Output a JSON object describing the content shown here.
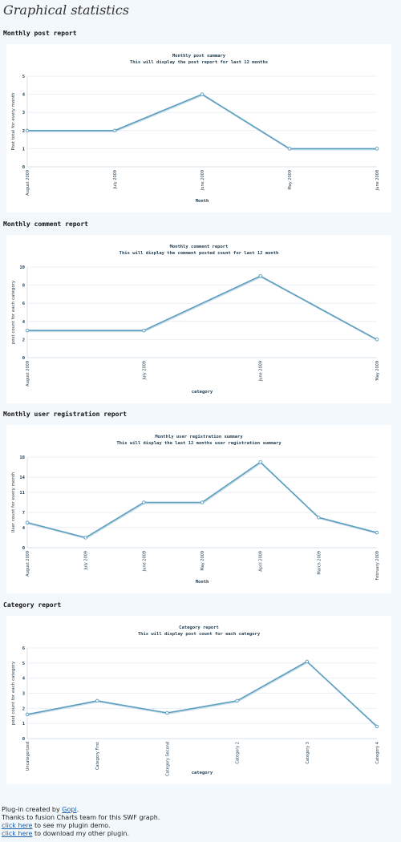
{
  "page": {
    "title": "Graphical statistics"
  },
  "charts": [
    {
      "section_title": "Monthly post report",
      "chart_data": {
        "type": "line",
        "title": "Monthly post summary",
        "subtitle": "This will display the post report for last 12 months",
        "xlabel": "Month",
        "ylabel": "Post total for every month",
        "categories": [
          "August 2009",
          "July 2009",
          "June 2009",
          "May 2009",
          "June 2008"
        ],
        "values": [
          2,
          2,
          4,
          1,
          1
        ],
        "ylim": [
          0,
          5
        ],
        "yticks": [
          0,
          1,
          2,
          3,
          4,
          5
        ],
        "line_color": "#5a9ec0",
        "grid": true
      }
    },
    {
      "section_title": "Monthly comment report",
      "chart_data": {
        "type": "line",
        "title": "Monthly comment report",
        "subtitle": "This will display the comment posted count for last 12 month",
        "xlabel": "category",
        "ylabel": "post count for each category",
        "categories": [
          "August 2009",
          "July 2009",
          "June 2009",
          "May 2009"
        ],
        "values": [
          3,
          3,
          9,
          2
        ],
        "ylim": [
          0,
          10
        ],
        "yticks": [
          0,
          2,
          4,
          6,
          8,
          10
        ],
        "line_color": "#5a9ec0",
        "grid": true
      }
    },
    {
      "section_title": "Monthly user registration report",
      "chart_data": {
        "type": "line",
        "title": "Monthly user registration summary",
        "subtitle": "This will display the last 12 months user registration summary",
        "xlabel": "Month",
        "ylabel": "User count for every month",
        "categories": [
          "August 2009",
          "July 2009",
          "June 2009",
          "May 2009",
          "April 2009",
          "March 2009",
          "February 2009"
        ],
        "values": [
          5,
          2,
          9,
          9,
          17,
          6,
          3
        ],
        "ylim": [
          0,
          18
        ],
        "yticks": [
          0,
          4,
          7,
          11,
          14,
          18
        ],
        "line_color": "#5a9ec0",
        "grid": true
      }
    },
    {
      "section_title": "Category report",
      "chart_data": {
        "type": "line",
        "title": "Category report",
        "subtitle": "This will display post count for each category",
        "xlabel": "category",
        "ylabel": "post count for each category",
        "categories": [
          "Uncategorized",
          "Category First",
          "Category Second",
          "Category 2",
          "Category 3",
          "Category 4"
        ],
        "values": [
          1.6,
          2.5,
          1.7,
          2.5,
          5.1,
          0.8
        ],
        "ylim": [
          0,
          6
        ],
        "yticks": [
          0,
          1,
          2,
          3,
          4,
          5,
          6
        ],
        "line_color": "#5a9ec0",
        "grid": true
      }
    }
  ],
  "footer": {
    "line1_prefix": "Plug-in created by ",
    "line1_link": "Gopi",
    "line1_suffix": ".",
    "line2": "Thanks to fusion Charts team for this SWF graph.",
    "line3_link": "click here",
    "line3_suffix": " to see my plugin demo.",
    "line4_link": "click here",
    "line4_suffix": " to download my other plugin."
  }
}
